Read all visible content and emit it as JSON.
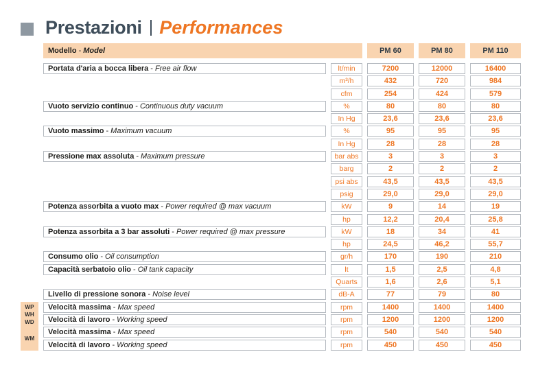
{
  "page": {
    "title_it": "Prestazioni",
    "title_sep": "|",
    "title_en": "Performances"
  },
  "colors": {
    "accent_orange": "#EE7623",
    "header_peach": "#F9D4B0",
    "title_dark": "#3E4D5A",
    "bullet_gray": "#8E98A1",
    "border_gray": "#B5BAC0"
  },
  "table": {
    "dash": "-",
    "header": {
      "model_it": "Modello",
      "model_en": "Model",
      "models": [
        "PM 60",
        "PM 80",
        "PM 110"
      ]
    },
    "groups": [
      {
        "label_it": "Portata d'aria a bocca libera",
        "label_en": "Free air flow",
        "rows": [
          {
            "unit": "lt/min",
            "values": [
              "7200",
              "12000",
              "16400"
            ]
          },
          {
            "unit": "m³/h",
            "values": [
              "432",
              "720",
              "984"
            ]
          },
          {
            "unit": "cfm",
            "values": [
              "254",
              "424",
              "579"
            ]
          }
        ]
      },
      {
        "label_it": "Vuoto servizio continuo",
        "label_en": "Continuous duty vacuum",
        "rows": [
          {
            "unit": "%",
            "values": [
              "80",
              "80",
              "80"
            ]
          },
          {
            "unit": "In Hg",
            "values": [
              "23,6",
              "23,6",
              "23,6"
            ]
          }
        ]
      },
      {
        "label_it": "Vuoto massimo",
        "label_en": "Maximum vacuum",
        "rows": [
          {
            "unit": "%",
            "values": [
              "95",
              "95",
              "95"
            ]
          },
          {
            "unit": "In Hg",
            "values": [
              "28",
              "28",
              "28"
            ]
          }
        ]
      },
      {
        "label_it": "Pressione max assoluta",
        "label_en": "Maximum pressure",
        "rows": [
          {
            "unit": "bar abs",
            "values": [
              "3",
              "3",
              "3"
            ]
          },
          {
            "unit": "barg",
            "values": [
              "2",
              "2",
              "2"
            ]
          },
          {
            "unit": "psi abs",
            "values": [
              "43,5",
              "43,5",
              "43,5"
            ]
          },
          {
            "unit": "psig",
            "values": [
              "29,0",
              "29,0",
              "29,0"
            ]
          }
        ]
      },
      {
        "label_it": "Potenza assorbita a vuoto max",
        "label_en": "Power required @ max vacuum",
        "rows": [
          {
            "unit": "kW",
            "values": [
              "9",
              "14",
              "19"
            ]
          },
          {
            "unit": "hp",
            "values": [
              "12,2",
              "20,4",
              "25,8"
            ]
          }
        ]
      },
      {
        "label_it": "Potenza assorbita a 3 bar assoluti",
        "label_en": "Power required @ max pressure",
        "rows": [
          {
            "unit": "kW",
            "values": [
              "18",
              "34",
              "41"
            ]
          },
          {
            "unit": "hp",
            "values": [
              "24,5",
              "46,2",
              "55,7"
            ]
          }
        ]
      },
      {
        "label_it": "Consumo olio",
        "label_en": "Oil consumption",
        "rows": [
          {
            "unit": "gr/h",
            "values": [
              "170",
              "190",
              "210"
            ]
          }
        ]
      },
      {
        "label_it": "Capacità serbatoio olio",
        "label_en": "Oil tank capacity",
        "rows": [
          {
            "unit": "lt",
            "values": [
              "1,5",
              "2,5",
              "4,8"
            ]
          },
          {
            "unit": "Quarts",
            "values": [
              "1,6",
              "2,6",
              "5,1"
            ]
          }
        ]
      },
      {
        "label_it": "Livello di pressione sonora",
        "label_en": "Noise level",
        "rows": [
          {
            "unit": "dB-A",
            "values": [
              "77",
              "79",
              "80"
            ]
          }
        ]
      },
      {
        "label_it": "Velocità massima",
        "label_en": "Max speed",
        "rows": [
          {
            "unit": "rpm",
            "values": [
              "1400",
              "1400",
              "1400"
            ]
          }
        ]
      },
      {
        "label_it": "Velocità di lavoro",
        "label_en": "Working speed",
        "rows": [
          {
            "unit": "rpm",
            "values": [
              "1200",
              "1200",
              "1200"
            ]
          }
        ]
      },
      {
        "label_it": "Velocità massima",
        "label_en": "Max speed",
        "rows": [
          {
            "unit": "rpm",
            "values": [
              "540",
              "540",
              "540"
            ]
          }
        ]
      },
      {
        "label_it": "Velocità di lavoro",
        "label_en": "Working speed",
        "rows": [
          {
            "unit": "rpm",
            "values": [
              "450",
              "450",
              "450"
            ]
          }
        ]
      }
    ],
    "side_labels": [
      {
        "lines": [
          "WP",
          "WH",
          "WD"
        ],
        "group_start": 9,
        "group_end": 10
      },
      {
        "lines": [
          "WM"
        ],
        "group_start": 11,
        "group_end": 12
      }
    ]
  }
}
